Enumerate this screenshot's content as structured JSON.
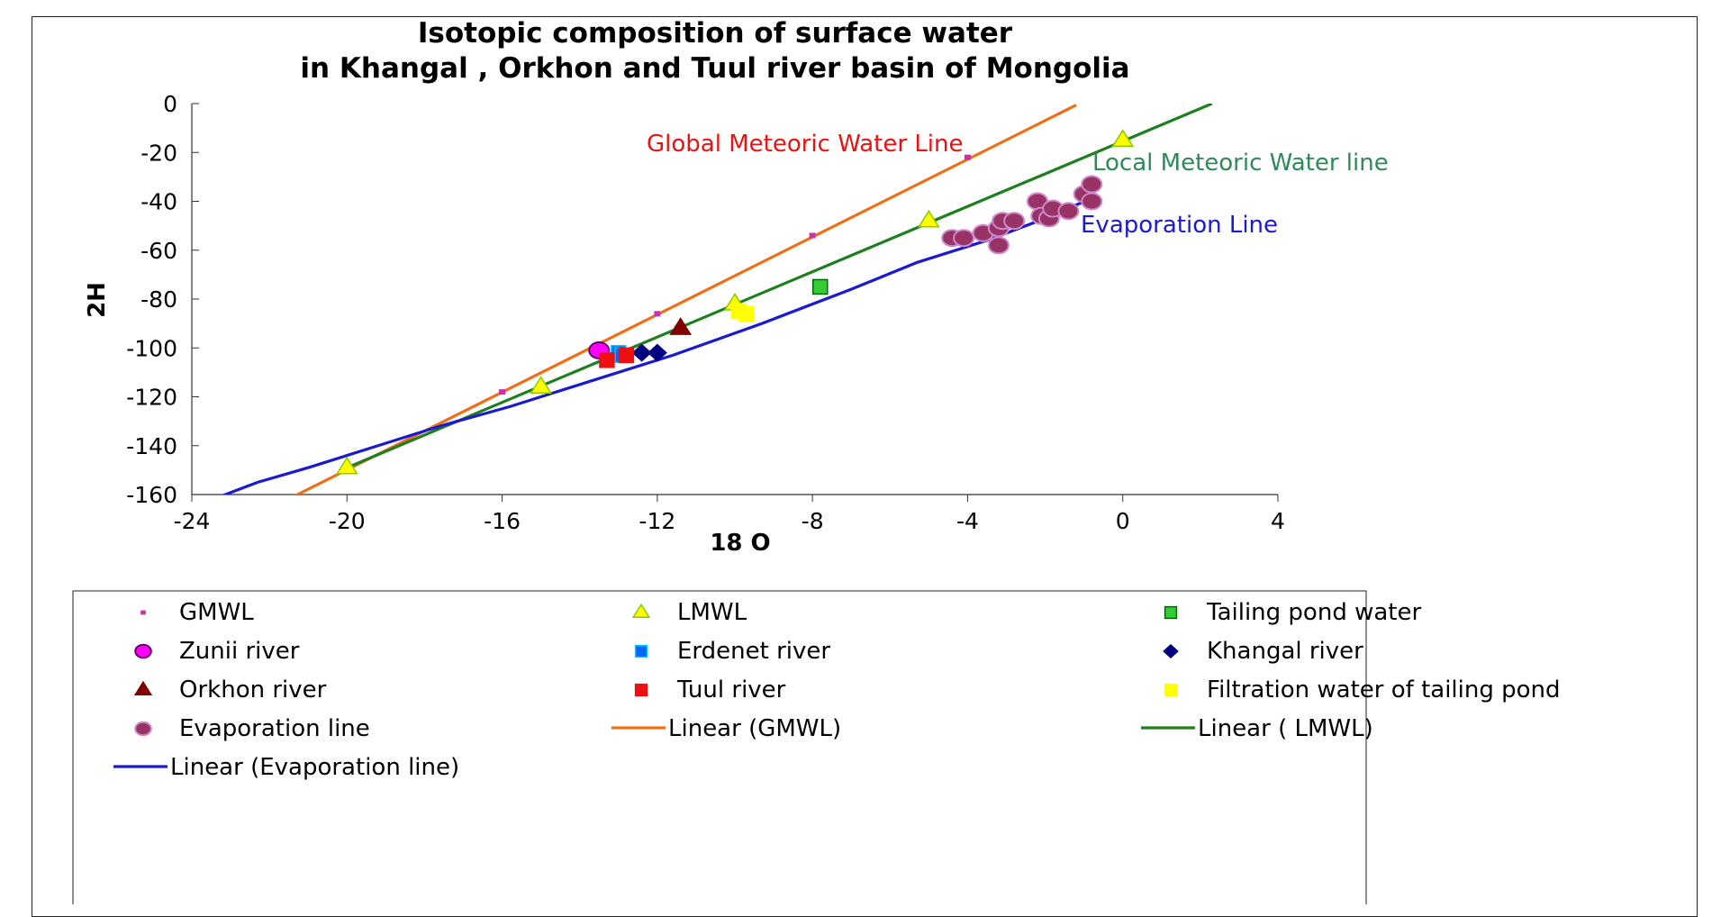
{
  "chart_data": {
    "type": "scatter",
    "title_lines": [
      "Isotopic composition of surface water",
      "in Khangal , Orkhon and Tuul river basin of Mongolia"
    ],
    "xlabel": "18 O",
    "ylabel": "2H",
    "xlim": [
      -24,
      4
    ],
    "ylim": [
      -160,
      0
    ],
    "x_ticks": [
      -24,
      -20,
      -16,
      -12,
      -8,
      -4,
      0,
      4
    ],
    "y_ticks": [
      0,
      -20,
      -40,
      -60,
      -80,
      -100,
      -120,
      -140,
      -160
    ],
    "x_tick_labels": [
      "-24",
      "-20",
      "-16",
      "-12",
      "-8",
      "-4",
      "0",
      "4"
    ],
    "y_tick_labels": [
      "0",
      "-20",
      "-40",
      "-60",
      "-80",
      "-100",
      "-120",
      "-140",
      "-160"
    ],
    "grid": false,
    "legend_position": "bottom",
    "series": [
      {
        "name": "GMWL",
        "marker": "small-square",
        "color": "#cc33aa",
        "points": [
          [
            -20,
            -150
          ],
          [
            -16,
            -118
          ],
          [
            -12,
            -86
          ],
          [
            -8,
            -54
          ],
          [
            -4,
            -22
          ]
        ]
      },
      {
        "name": "LMWL",
        "marker": "triangle",
        "color": "#ffff00",
        "edge": "#88cc00",
        "points": [
          [
            -20,
            -149
          ],
          [
            -15,
            -116
          ],
          [
            -10,
            -82
          ],
          [
            -5,
            -48
          ],
          [
            0,
            -15
          ]
        ]
      },
      {
        "name": "Tailing pond water",
        "marker": "square",
        "color": "#33cc33",
        "edge": "#006600",
        "points": [
          [
            -7.8,
            -75
          ]
        ]
      },
      {
        "name": "Zunii river",
        "marker": "circle",
        "color": "#ff00ff",
        "edge": "#660066",
        "points": [
          [
            -13.5,
            -101
          ]
        ]
      },
      {
        "name": "Erdenet river",
        "marker": "square",
        "color": "#0066ff",
        "edge": "#00ccff",
        "points": [
          [
            -13.0,
            -102
          ],
          [
            -12.9,
            -103
          ]
        ]
      },
      {
        "name": "Khangal river",
        "marker": "diamond",
        "color": "#000080",
        "points": [
          [
            -12.4,
            -102
          ],
          [
            -12.0,
            -102
          ]
        ]
      },
      {
        "name": "Orkhon river",
        "marker": "triangle",
        "color": "#800000",
        "points": [
          [
            -11.4,
            -92
          ]
        ]
      },
      {
        "name": "Tuul river",
        "marker": "square",
        "color": "#ee1111",
        "points": [
          [
            -13.3,
            -105
          ],
          [
            -12.8,
            -103
          ]
        ]
      },
      {
        "name": "Filtration water of tailing pond",
        "marker": "square",
        "color": "#ffff00",
        "points": [
          [
            -9.9,
            -85
          ],
          [
            -9.7,
            -86
          ]
        ]
      },
      {
        "name": "Evaporation line",
        "marker": "circle",
        "color": "#993366",
        "edge": "#cc88cc",
        "points": [
          [
            -4.4,
            -55
          ],
          [
            -4.1,
            -55
          ],
          [
            -3.6,
            -53
          ],
          [
            -3.2,
            -51
          ],
          [
            -3.1,
            -48
          ],
          [
            -3.2,
            -58
          ],
          [
            -2.8,
            -48
          ],
          [
            -2.2,
            -40
          ],
          [
            -2.1,
            -46
          ],
          [
            -1.9,
            -47
          ],
          [
            -1.8,
            -43
          ],
          [
            -1.4,
            -44
          ],
          [
            -1.0,
            -37
          ],
          [
            -0.8,
            -33
          ],
          [
            -0.8,
            -40
          ]
        ]
      }
    ],
    "trendlines": [
      {
        "name": "Linear (GMWL)",
        "color": "#f07018",
        "x": [
          -21.4,
          -1.2
        ],
        "y": [
          -161,
          -0.6
        ]
      },
      {
        "name": "Linear ( LMWL)",
        "color": "#1f7f1f",
        "x": [
          -20,
          2.3
        ],
        "y": [
          -149,
          0
        ]
      },
      {
        "name": "Linear (Evaporation line)",
        "color": "#1a1ad0",
        "x": [
          -23.3,
          -22.3,
          -21.0,
          -19.4,
          -17.6,
          -15.8,
          -13.8,
          -11.6,
          -9.3,
          -7.0,
          -5.3,
          -3.5,
          -2.0,
          -0.7
        ],
        "y": [
          -161,
          -155,
          -149,
          -141,
          -132,
          -124,
          -114,
          -103,
          -90,
          -76,
          -65,
          -56,
          -47,
          -38
        ]
      }
    ],
    "annotations": [
      {
        "text": "Global Meteoric Water Line",
        "color": "#ee1111"
      },
      {
        "text": "Local Meteoric Water line",
        "color": "#2e8b57"
      },
      {
        "text": "Evaporation Line",
        "color": "#1a1ad0"
      }
    ],
    "legend": [
      [
        "GMWL",
        "LMWL",
        "Tailing pond water"
      ],
      [
        "Zunii river",
        "Erdenet river",
        "Khangal river"
      ],
      [
        "Orkhon river",
        "Tuul river",
        "Filtration water of tailing pond"
      ],
      [
        "Evaporation line",
        "Linear (GMWL)",
        "Linear ( LMWL)"
      ],
      [
        "Linear (Evaporation line)"
      ]
    ]
  }
}
